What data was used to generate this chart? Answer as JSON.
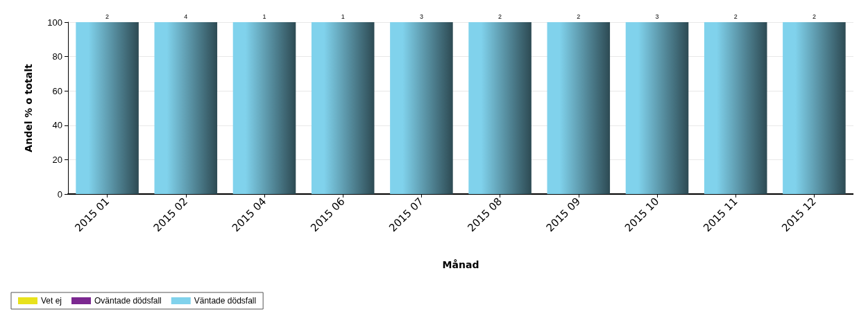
{
  "chart_data": {
    "type": "bar",
    "stacked": true,
    "xlabel": "Månad",
    "ylabel": "Andel % o totalt",
    "categories": [
      "2015 01",
      "2015 02",
      "2015 04",
      "2015 06",
      "2015 07",
      "2015 08",
      "2015 09",
      "2015 10",
      "2015 11",
      "2015 12"
    ],
    "series": [
      {
        "name": "Vet ej",
        "color": "#e8e21c",
        "values": [
          0,
          0,
          0,
          0,
          0,
          0,
          0,
          0,
          0,
          0
        ]
      },
      {
        "name": "Oväntade dödsfall",
        "color": "#7b2890",
        "values": [
          0,
          0,
          0,
          0,
          0,
          0,
          0,
          0,
          0,
          0
        ]
      },
      {
        "name": "Väntade dödsfall",
        "color": "#80d2ec",
        "values": [
          100,
          100,
          100,
          100,
          100,
          100,
          100,
          100,
          100,
          100
        ]
      }
    ],
    "annotations": [
      {
        "text": "2",
        "x": "2015 01",
        "y": 100
      },
      {
        "text": "4",
        "x": "2015 02",
        "y": 100
      },
      {
        "text": "1",
        "x": "2015 04",
        "y": 100
      },
      {
        "text": "1",
        "x": "2015 06",
        "y": 100
      },
      {
        "text": "3",
        "x": "2015 07",
        "y": 100
      },
      {
        "text": "2",
        "x": "2015 08",
        "y": 100
      },
      {
        "text": "2",
        "x": "2015 09",
        "y": 100
      },
      {
        "text": "3",
        "x": "2015 10",
        "y": 100
      },
      {
        "text": "2",
        "x": "2015 11",
        "y": 100
      },
      {
        "text": "2",
        "x": "2015 12",
        "y": 100
      }
    ],
    "ylim": [
      0,
      100
    ],
    "yticks": [
      0,
      20,
      40,
      60,
      80,
      100
    ],
    "grid": "y",
    "legend": "bottom left"
  }
}
